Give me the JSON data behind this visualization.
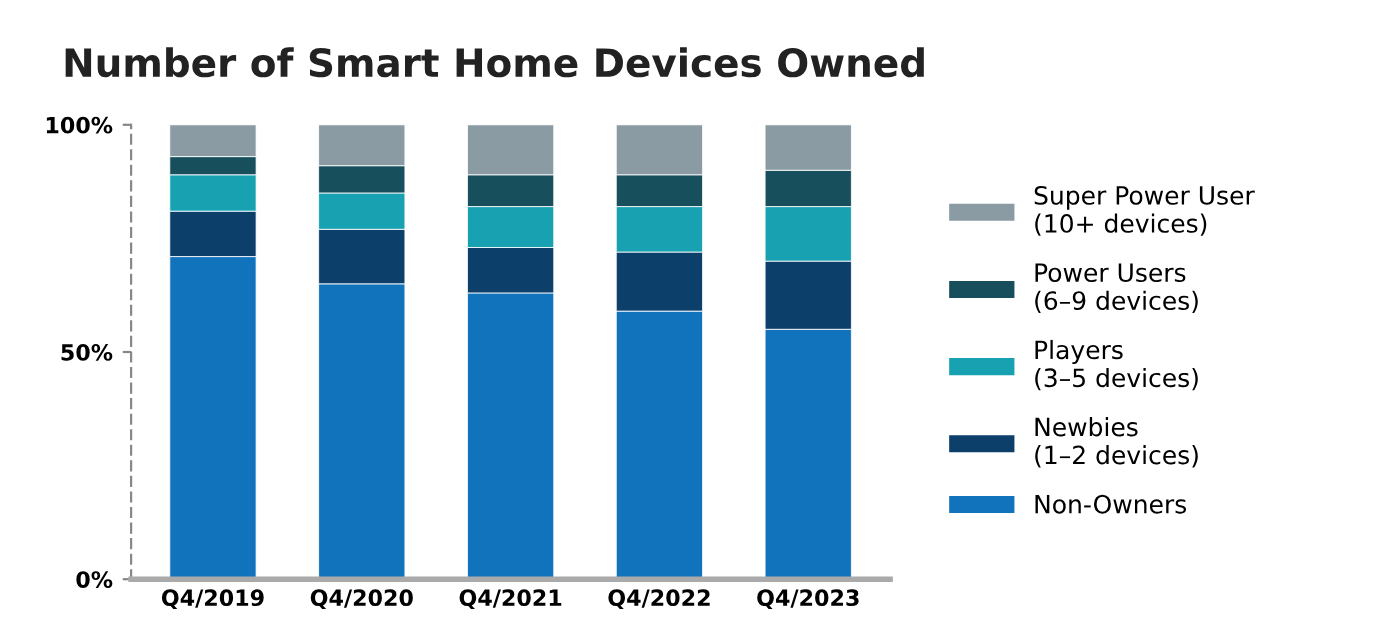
{
  "chart_data": {
    "type": "bar",
    "title": "Number of Smart Home Devices Owned",
    "stacked": true,
    "categories": [
      "Q4/2019",
      "Q4/2020",
      "Q4/2021",
      "Q4/2022",
      "Q4/2023"
    ],
    "series": [
      {
        "name": "Non-Owners",
        "color": "#1273bd",
        "values": [
          71,
          65,
          63,
          59,
          55
        ]
      },
      {
        "name": "Newbies\n(1–2 devices)",
        "color": "#0d3f6b",
        "values": [
          10,
          12,
          10,
          13,
          15
        ]
      },
      {
        "name": "Players\n(3–5 devices)",
        "color": "#17a1b1",
        "values": [
          8,
          8,
          9,
          10,
          12
        ]
      },
      {
        "name": "Power Users\n(6–9 devices)",
        "color": "#174f5c",
        "values": [
          4,
          6,
          7,
          7,
          8
        ]
      },
      {
        "name": "Super Power User\n(10+ devices)",
        "color": "#8a9ba3",
        "values": [
          7,
          9,
          11,
          11,
          10
        ]
      }
    ],
    "ylim": [
      0,
      100
    ],
    "yticks": [
      {
        "value": 0,
        "label": "0%"
      },
      {
        "value": 50,
        "label": "50%"
      },
      {
        "value": 100,
        "label": "100%"
      }
    ],
    "grid": false,
    "legend": "right"
  }
}
